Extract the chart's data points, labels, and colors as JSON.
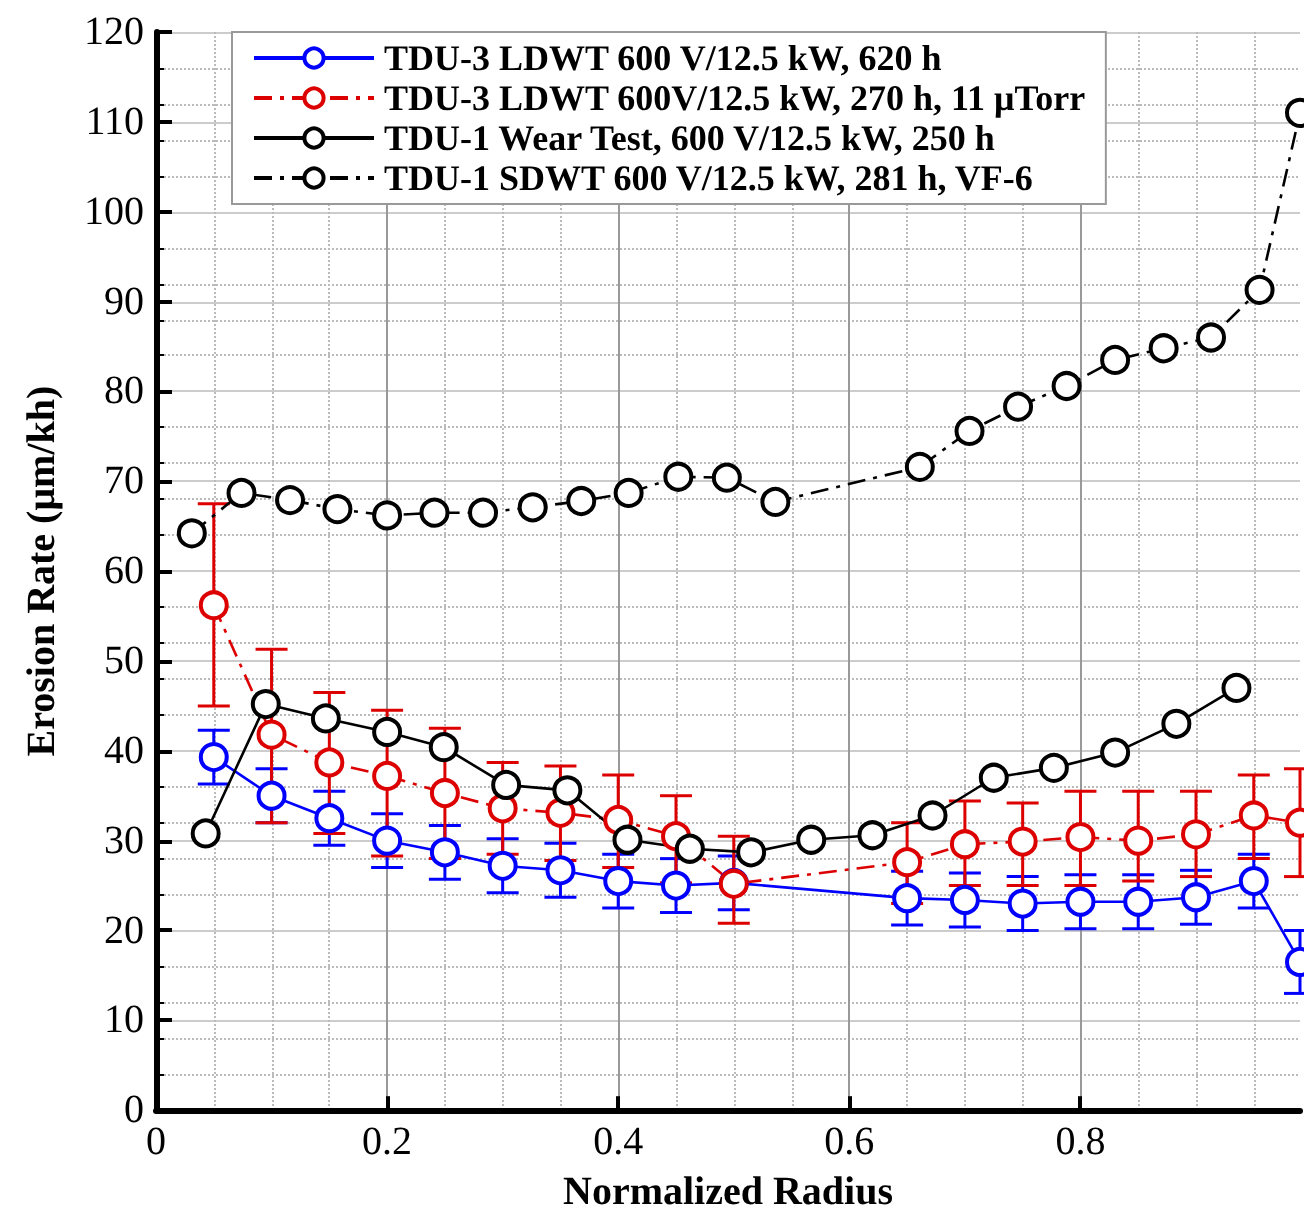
{
  "chart_data": {
    "type": "line",
    "xlabel": "Normalized Radius",
    "ylabel": "Erosion Rate (μm/kh)",
    "xlim": [
      0,
      0.99
    ],
    "ylim": [
      0,
      120
    ],
    "xticks": [
      0,
      0.2,
      0.4,
      0.6,
      0.8
    ],
    "yticks": [
      0,
      10,
      20,
      30,
      40,
      50,
      60,
      70,
      80,
      90,
      100,
      110,
      120
    ],
    "grid": true,
    "legend": "top",
    "marker": "circle",
    "series": [
      {
        "name": "TDU-3 LDWT 600 V/12.5 kW, 620 h",
        "color": "#0000ff",
        "line_style": "solid",
        "x": [
          0.05,
          0.1,
          0.15,
          0.2,
          0.25,
          0.3,
          0.35,
          0.4,
          0.45,
          0.5,
          0.65,
          0.7,
          0.75,
          0.8,
          0.85,
          0.9,
          0.95,
          0.99
        ],
        "values": [
          39.3,
          35,
          32.5,
          30,
          28.7,
          27.2,
          26.7,
          25.5,
          25,
          25.3,
          23.6,
          23.4,
          23,
          23.2,
          23.2,
          23.7,
          25.5,
          16.5
        ],
        "errors": [
          3,
          3,
          3,
          3,
          3,
          3,
          3,
          3,
          3,
          3,
          3,
          3,
          3,
          3,
          3,
          3,
          3,
          3.5
        ]
      },
      {
        "name": "TDU-3 LDWT 600V/12.5 kW, 270 h, 11 μTorr",
        "color": "#dd0000",
        "line_style": "dashed",
        "x": [
          0.05,
          0.1,
          0.15,
          0.2,
          0.25,
          0.3,
          0.35,
          0.4,
          0.45,
          0.5,
          0.65,
          0.7,
          0.75,
          0.8,
          0.85,
          0.9,
          0.95,
          0.99
        ],
        "values": [
          56.2,
          41.8,
          38.7,
          37.2,
          35.3,
          33.6,
          33.1,
          32.3,
          30.5,
          25.2,
          27.6,
          29.6,
          29.9,
          30.4,
          30,
          30.7,
          32.8,
          32
        ],
        "errors": [
          [
            45,
            67.5
          ],
          [
            32,
            51.3
          ],
          [
            30.8,
            46.5
          ],
          [
            28.3,
            44.5
          ],
          [
            28,
            42.5
          ],
          [
            28.5,
            38.7
          ],
          [
            27.8,
            38.3
          ],
          [
            27,
            37.3
          ],
          [
            25.3,
            35
          ],
          [
            20.8,
            30.5
          ],
          [
            23,
            32
          ],
          [
            25,
            34.4
          ],
          [
            25,
            34.2
          ],
          [
            25,
            35.5
          ],
          [
            25.5,
            35.5
          ],
          [
            26,
            35.5
          ],
          [
            28,
            37.3
          ],
          [
            26,
            38
          ]
        ]
      },
      {
        "name": "TDU-1 Wear Test, 600 V/12.5 kW, 250 h",
        "color": "#000000",
        "line_style": "solid",
        "x": [
          0.043,
          0.095,
          0.147,
          0.2,
          0.249,
          0.303,
          0.356,
          0.408,
          0.462,
          0.515,
          0.567,
          0.62,
          0.672,
          0.725,
          0.777,
          0.83,
          0.883,
          0.935
        ],
        "values": [
          30.8,
          45.2,
          43.6,
          42.1,
          40.4,
          36.2,
          35.6,
          30.1,
          29.1,
          28.7,
          30.1,
          30.6,
          32.8,
          37,
          38.1,
          39.8,
          43,
          47
        ]
      },
      {
        "name": "TDU-1 SDWT 600 V/12.5 kW, 281 h, VF-6",
        "color": "#000000",
        "line_style": "dashed",
        "x": [
          0.031,
          0.074,
          0.116,
          0.157,
          0.2,
          0.241,
          0.283,
          0.326,
          0.368,
          0.409,
          0.452,
          0.494,
          0.536,
          0.661,
          0.704,
          0.746,
          0.788,
          0.83,
          0.872,
          0.913,
          0.955,
          0.99
        ],
        "values": [
          64.2,
          68.7,
          67.9,
          66.9,
          66.2,
          66.5,
          66.5,
          67.1,
          67.8,
          68.7,
          70.5,
          70.4,
          67.7,
          71.6,
          75.6,
          78.3,
          80.6,
          83.5,
          84.8,
          86,
          91.3,
          111
        ]
      }
    ]
  }
}
